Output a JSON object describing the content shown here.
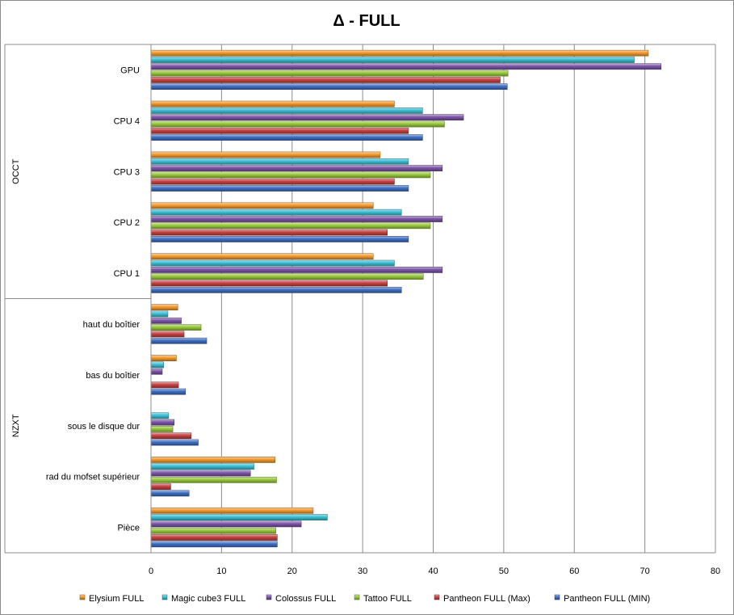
{
  "chart_data": {
    "type": "bar",
    "orientation": "horizontal",
    "title": "Δ - FULL",
    "xlim": [
      0,
      80
    ],
    "xticks": [
      "0",
      "10",
      "20",
      "30",
      "40",
      "50",
      "60",
      "70",
      "80"
    ],
    "grid": true,
    "legend_position": "bottom",
    "groups": [
      {
        "label": "OCCT",
        "categories": [
          "GPU",
          "CPU 4",
          "CPU 3",
          "CPU 2",
          "CPU 1"
        ]
      },
      {
        "label": "NZXT",
        "categories": [
          "haut du boîtier",
          "bas du boîtier",
          "sous le disque dur",
          "rad du mofset supérieur",
          "Pièce"
        ]
      }
    ],
    "categories": [
      "GPU",
      "CPU 4",
      "CPU 3",
      "CPU 2",
      "CPU 1",
      "haut du boîtier",
      "bas du boîtier",
      "sous le disque dur",
      "rad du mofset supérieur",
      "Pièce"
    ],
    "series": [
      {
        "name": "Elysium FULL",
        "color": "#f39a2e",
        "values": [
          70.5,
          34.5,
          32.5,
          31.5,
          31.5,
          3.8,
          3.6,
          0,
          17.6,
          23
        ]
      },
      {
        "name": "Magic cube3 FULL",
        "color": "#3cbfd4",
        "values": [
          68.5,
          38.5,
          36.5,
          35.5,
          34.5,
          2.4,
          1.8,
          2.5,
          14.6,
          25
        ]
      },
      {
        "name": "Colossus FULL",
        "color": "#7c55a8",
        "values": [
          72.3,
          44.3,
          41.3,
          41.3,
          41.3,
          4.3,
          1.6,
          3.3,
          14.1,
          21.3
        ]
      },
      {
        "name": "Tattoo FULL",
        "color": "#98c93c",
        "values": [
          50.6,
          41.6,
          39.6,
          39.6,
          38.6,
          7.1,
          0,
          3.1,
          17.8,
          17.7
        ]
      },
      {
        "name": "Pantheon FULL (Max)",
        "color": "#c74242",
        "values": [
          49.5,
          36.5,
          34.5,
          33.5,
          33.5,
          4.7,
          3.9,
          5.7,
          2.8,
          17.9
        ]
      },
      {
        "name": "Pantheon FULL (MIN)",
        "color": "#3f6fc4",
        "values": [
          50.5,
          38.5,
          36.5,
          36.5,
          35.5,
          7.9,
          4.9,
          6.7,
          5.4,
          17.9
        ]
      }
    ]
  }
}
